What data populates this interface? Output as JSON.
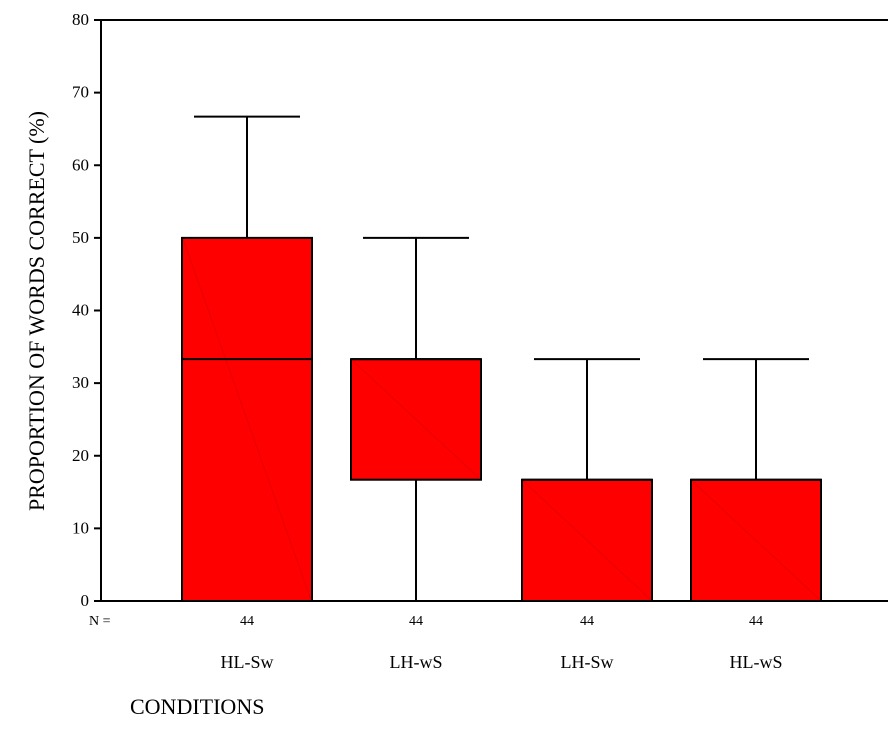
{
  "chart_data": {
    "type": "boxplot",
    "title": "",
    "ylabel": "PROPORTION OF WORDS CORRECT (%)",
    "xlabel": "CONDITIONS",
    "ylim": [
      0,
      80
    ],
    "yticks": [
      0,
      10,
      20,
      30,
      40,
      50,
      60,
      70,
      80
    ],
    "n_prefix": "N =",
    "box_color": "#ff0000",
    "categories": [
      "HL-Sw",
      "LH-wS",
      "LH-Sw",
      "HL-wS"
    ],
    "n_values": [
      "44",
      "44",
      "44",
      "44"
    ],
    "boxes": [
      {
        "category": "HL-Sw",
        "min": 0,
        "q1": 0,
        "median": 33.3,
        "q3": 50.0,
        "max": 66.7
      },
      {
        "category": "LH-wS",
        "min": 0,
        "q1": 16.7,
        "median": 33.3,
        "q3": 33.3,
        "max": 50.0
      },
      {
        "category": "LH-Sw",
        "min": 0,
        "q1": 0,
        "median": 16.7,
        "q3": 16.7,
        "max": 33.3
      },
      {
        "category": "HL-wS",
        "min": 0,
        "q1": 0,
        "median": 16.7,
        "q3": 16.7,
        "max": 33.3
      }
    ],
    "grid": false,
    "legend": "none"
  }
}
